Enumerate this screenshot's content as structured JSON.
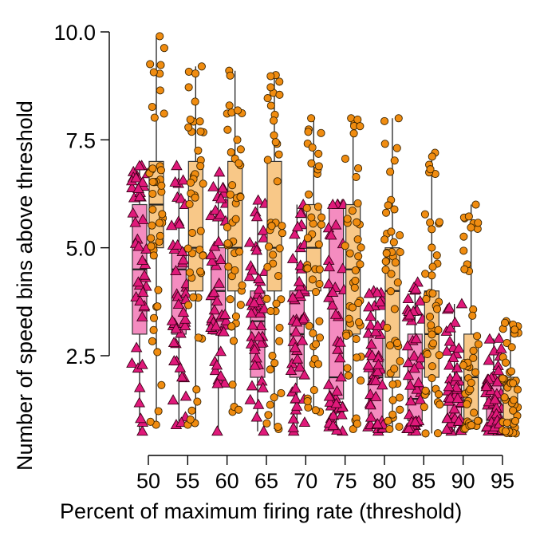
{
  "chart_data": {
    "type": "box",
    "xlabel": "Percent of maximum firing rate (threshold)",
    "ylabel": "Number of speed bins above threshold",
    "categories": [
      "50",
      "55",
      "60",
      "65",
      "70",
      "75",
      "80",
      "85",
      "90",
      "95"
    ],
    "yticks": [
      2.5,
      5.0,
      7.5,
      10.0
    ],
    "ytick_labels": [
      "2.5",
      "5.0",
      "7.5",
      "10.0"
    ],
    "ylim": [
      0,
      10.6
    ],
    "grid": false,
    "legend": "none",
    "series": [
      {
        "marker": "triangle",
        "fill": "#f48cc0",
        "point_color": "#e0197a",
        "boxes": [
          {
            "q1": 3.0,
            "median": 4.5,
            "q3": 6.0,
            "whisker_low": 0.75,
            "whisker_high": 6.9
          },
          {
            "q1": 3.0,
            "median": 4.5,
            "q3": 5.0,
            "whisker_low": 0.9,
            "whisker_high": 6.9
          },
          {
            "q1": 3.0,
            "median": 4.0,
            "q3": 5.0,
            "whisker_low": 0.75,
            "whisker_high": 6.75
          },
          {
            "q1": 2.0,
            "median": 3.3,
            "q3": 4.0,
            "whisker_low": 0.75,
            "whisker_high": 6.1
          },
          {
            "q1": 2.0,
            "median": 3.0,
            "q3": 4.0,
            "whisker_low": 0.75,
            "whisker_high": 6.0
          },
          {
            "q1": 1.5,
            "median": 2.0,
            "q3": 6.0,
            "whisker_low": 0.75,
            "whisker_high": 6.0
          },
          {
            "q1": 1.0,
            "median": 2.0,
            "q3": 3.0,
            "whisker_low": 0.75,
            "whisker_high": 4.0
          },
          {
            "q1": 1.0,
            "median": 1.5,
            "q3": 3.0,
            "whisker_low": 0.75,
            "whisker_high": 4.2
          },
          {
            "q1": 1.0,
            "median": 1.5,
            "q3": 2.0,
            "whisker_low": 0.75,
            "whisker_high": 3.7
          },
          {
            "q1": 1.0,
            "median": 1.3,
            "q3": 2.0,
            "whisker_low": 0.75,
            "whisker_high": 2.9
          }
        ]
      },
      {
        "marker": "circle",
        "fill": "#f8c888",
        "point_color": "#f08c10",
        "boxes": [
          {
            "q1": 5.0,
            "median": 6.0,
            "q3": 7.0,
            "whisker_low": 0.9,
            "whisker_high": 9.9
          },
          {
            "q1": 4.0,
            "median": 5.0,
            "q3": 7.0,
            "whisker_low": 0.9,
            "whisker_high": 9.2
          },
          {
            "q1": 4.0,
            "median": 5.0,
            "q3": 7.0,
            "whisker_low": 1.2,
            "whisker_high": 9.1
          },
          {
            "q1": 4.0,
            "median": 5.0,
            "q3": 7.0,
            "whisker_low": 0.8,
            "whisker_high": 9.0
          },
          {
            "q1": 4.0,
            "median": 5.0,
            "q3": 6.0,
            "whisker_low": 1.2,
            "whisker_high": 8.0
          },
          {
            "q1": 3.0,
            "median": 4.5,
            "q3": 6.0,
            "whisker_low": 0.8,
            "whisker_high": 8.0
          },
          {
            "q1": 2.0,
            "median": 4.0,
            "q3": 5.0,
            "whisker_low": 0.8,
            "whisker_high": 8.0
          },
          {
            "q1": 2.0,
            "median": 3.0,
            "q3": 4.0,
            "whisker_low": 0.7,
            "whisker_high": 7.2
          },
          {
            "q1": 1.0,
            "median": 2.0,
            "q3": 3.0,
            "whisker_low": 0.8,
            "whisker_high": 6.0
          },
          {
            "q1": 1.0,
            "median": 1.5,
            "q3": 2.0,
            "whisker_low": 0.7,
            "whisker_high": 3.3
          }
        ]
      }
    ]
  }
}
